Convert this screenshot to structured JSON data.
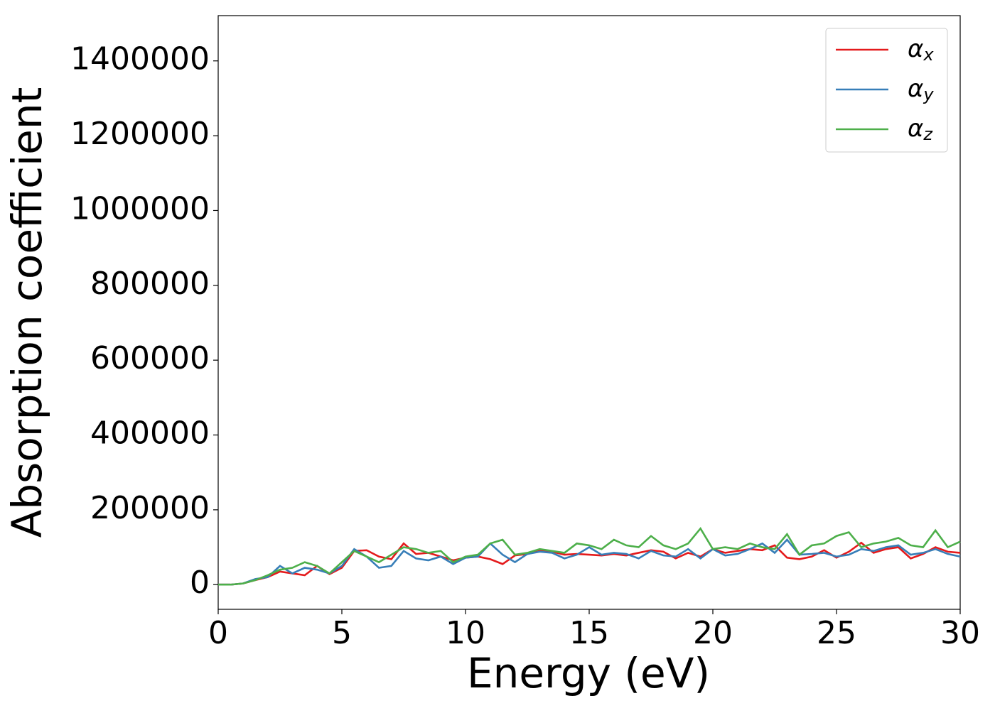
{
  "chart_data": {
    "type": "line",
    "xlabel": "Energy (eV)",
    "ylabel": "Absorption coefficient",
    "x": [
      0,
      0.5,
      1,
      1.5,
      2,
      2.5,
      3,
      3.5,
      4,
      4.5,
      5,
      5.5,
      6,
      6.5,
      7,
      7.5,
      8,
      8.5,
      9,
      9.5,
      10,
      10.5,
      11,
      11.5,
      12,
      12.5,
      13,
      13.5,
      14,
      14.5,
      15,
      15.5,
      16,
      16.5,
      17,
      17.5,
      18,
      18.5,
      19,
      19.5,
      20,
      20.5,
      21,
      21.5,
      22,
      22.5,
      23,
      23.5,
      24,
      24.5,
      25,
      25.5,
      26,
      26.5,
      27,
      27.5,
      28,
      28.5,
      29,
      29.5,
      30
    ],
    "series": [
      {
        "name": "αx",
        "color": "#e41a1c",
        "values": [
          0,
          0,
          3000,
          12000,
          20000,
          35000,
          30000,
          25000,
          50000,
          28000,
          45000,
          90000,
          92000,
          75000,
          68000,
          110000,
          82000,
          85000,
          75000,
          65000,
          72000,
          75000,
          68000,
          55000,
          78000,
          82000,
          90000,
          88000,
          80000,
          82000,
          80000,
          78000,
          82000,
          78000,
          85000,
          92000,
          88000,
          70000,
          85000,
          75000,
          95000,
          85000,
          90000,
          95000,
          92000,
          105000,
          72000,
          68000,
          75000,
          92000,
          72000,
          88000,
          112000,
          85000,
          95000,
          100000,
          70000,
          82000,
          100000,
          88000,
          85000
        ]
      },
      {
        "name": "αy",
        "color": "#377eb8",
        "values": [
          0,
          0,
          3000,
          15000,
          20000,
          50000,
          30000,
          45000,
          40000,
          30000,
          50000,
          95000,
          75000,
          45000,
          50000,
          90000,
          70000,
          65000,
          75000,
          55000,
          72000,
          75000,
          110000,
          80000,
          60000,
          82000,
          88000,
          85000,
          70000,
          80000,
          100000,
          80000,
          85000,
          82000,
          70000,
          90000,
          78000,
          75000,
          95000,
          70000,
          95000,
          78000,
          82000,
          95000,
          110000,
          85000,
          120000,
          80000,
          82000,
          85000,
          75000,
          80000,
          95000,
          90000,
          100000,
          105000,
          80000,
          85000,
          95000,
          82000,
          75000
        ]
      },
      {
        "name": "αz",
        "color": "#4daf4a",
        "values": [
          0,
          0,
          3000,
          12000,
          25000,
          40000,
          45000,
          60000,
          50000,
          30000,
          60000,
          90000,
          75000,
          60000,
          80000,
          100000,
          95000,
          85000,
          90000,
          60000,
          75000,
          80000,
          110000,
          120000,
          80000,
          85000,
          95000,
          90000,
          85000,
          110000,
          105000,
          95000,
          120000,
          105000,
          100000,
          130000,
          105000,
          95000,
          110000,
          150000,
          95000,
          100000,
          95000,
          110000,
          100000,
          95000,
          135000,
          80000,
          105000,
          110000,
          130000,
          140000,
          100000,
          110000,
          115000,
          125000,
          105000,
          100000,
          145000,
          100000,
          115000
        ]
      }
    ],
    "xlim": [
      0,
      30
    ],
    "xticks": [
      0,
      5,
      10,
      15,
      20,
      25,
      30
    ],
    "ylim": [
      -66000,
      1521000
    ],
    "yticks": [
      0,
      200000,
      400000,
      600000,
      800000,
      1000000,
      1200000,
      1400000
    ],
    "legend": "upper right",
    "grid": false
  }
}
